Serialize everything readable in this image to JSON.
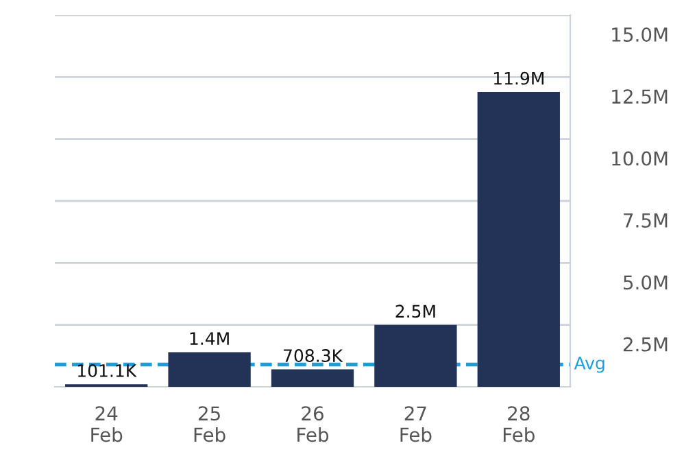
{
  "chart_data": {
    "type": "bar",
    "categories": [
      "24\nFeb",
      "25\nFeb",
      "26\nFeb",
      "27\nFeb",
      "28\nFeb"
    ],
    "values": [
      101100,
      1400000,
      708300,
      2500000,
      11900000
    ],
    "value_labels": [
      "101.1K",
      "1.4M",
      "708.3K",
      "2.5M",
      "11.9M"
    ],
    "color": "#233357",
    "ylim": [
      0,
      15000000
    ],
    "yticks": [
      {
        "value": 2500000,
        "label": "2.5M"
      },
      {
        "value": 5000000,
        "label": "5.0M"
      },
      {
        "value": 7500000,
        "label": "7.5M"
      },
      {
        "value": 10000000,
        "label": "10.0M"
      },
      {
        "value": 12500000,
        "label": "12.5M"
      },
      {
        "value": 15000000,
        "label": "15.0M"
      }
    ],
    "grid": "y",
    "ref_lines": [
      {
        "axis": "y",
        "value": 900000,
        "label": "Avg",
        "color": "#1a9fdc",
        "line_style": "dashed"
      }
    ]
  }
}
